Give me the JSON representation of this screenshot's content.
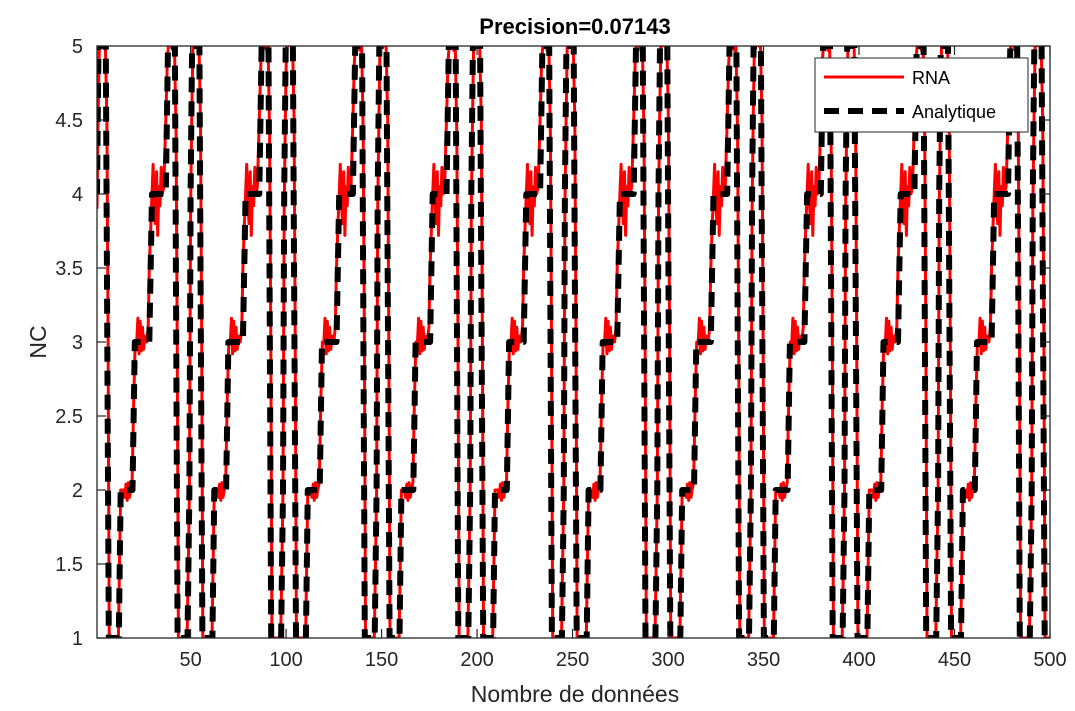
{
  "chart_data": {
    "type": "line",
    "title": "Precision=0.07143",
    "xlabel": "Nombre de données",
    "ylabel": "NC",
    "xlim": [
      1,
      500
    ],
    "ylim": [
      1,
      5
    ],
    "xticks": [
      50,
      100,
      150,
      200,
      250,
      300,
      350,
      400,
      450,
      500
    ],
    "xtick_labels": [
      "50",
      "100",
      "150",
      "200",
      "250",
      "300",
      "350",
      "400",
      "450",
      "500"
    ],
    "yticks": [
      1,
      1.5,
      2,
      2.5,
      3,
      3.5,
      4,
      4.5,
      5
    ],
    "ytick_labels": [
      "1",
      "1.5",
      "2",
      "2.5",
      "3",
      "3.5",
      "4",
      "4.5",
      "5"
    ],
    "grid": false,
    "legend_position": "top-right",
    "period": 49,
    "series": [
      {
        "name": "RNA",
        "color": "#ff0000",
        "style": "solid",
        "cycle": [
          [
            0,
            3.9
          ],
          [
            0.6,
            4.5
          ],
          [
            1.2,
            5.0
          ],
          [
            2.0,
            5.0
          ],
          [
            2.8,
            5.04
          ],
          [
            3.6,
            5.0
          ],
          [
            4.4,
            5.0
          ],
          [
            5.2,
            4.5
          ],
          [
            5.8,
            3.0
          ],
          [
            6.4,
            1.0
          ],
          [
            11.2,
            1.0
          ],
          [
            11.8,
            1.5
          ],
          [
            12.4,
            2.0
          ],
          [
            14.0,
            2.0
          ],
          [
            14.6,
            1.95
          ],
          [
            15.2,
            2.04
          ],
          [
            15.8,
            1.93
          ],
          [
            16.4,
            2.05
          ],
          [
            17.0,
            1.95
          ],
          [
            17.6,
            2.0
          ],
          [
            18.4,
            2.05
          ],
          [
            19.2,
            2.6
          ],
          [
            20.0,
            3.0
          ],
          [
            20.8,
            3.0
          ],
          [
            21.4,
            3.16
          ],
          [
            22.0,
            2.92
          ],
          [
            22.6,
            3.14
          ],
          [
            23.2,
            2.94
          ],
          [
            23.8,
            3.1
          ],
          [
            24.4,
            2.95
          ],
          [
            25.0,
            3.04
          ],
          [
            26.0,
            3.0
          ],
          [
            26.8,
            3.1
          ],
          [
            27.4,
            3.5
          ],
          [
            28.2,
            3.8
          ],
          [
            28.8,
            4.0
          ],
          [
            29.4,
            4.2
          ],
          [
            30.0,
            3.95
          ],
          [
            30.6,
            3.8
          ],
          [
            31.2,
            4.15
          ],
          [
            31.8,
            3.72
          ],
          [
            32.4,
            4.05
          ],
          [
            33.0,
            3.92
          ],
          [
            33.6,
            4.18
          ],
          [
            34.2,
            4.0
          ],
          [
            35.0,
            4.05
          ],
          [
            36.0,
            4.5
          ],
          [
            36.8,
            4.9
          ],
          [
            37.4,
            5.0
          ],
          [
            38.2,
            5.04
          ],
          [
            39.0,
            5.0
          ],
          [
            39.8,
            4.97
          ],
          [
            40.6,
            5.0
          ],
          [
            41.4,
            4.4
          ],
          [
            42.0,
            3.0
          ],
          [
            42.6,
            1.0
          ],
          [
            47.2,
            1.0
          ],
          [
            47.8,
            1.5
          ],
          [
            48.4,
            2.0
          ],
          [
            49.0,
            3.9
          ]
        ]
      },
      {
        "name": "Analytique",
        "color": "#000000",
        "style": "dashed",
        "cycle": [
          [
            0,
            4.0
          ],
          [
            0.8,
            5.0
          ],
          [
            4.6,
            5.0
          ],
          [
            6.2,
            1.0
          ],
          [
            11.4,
            1.0
          ],
          [
            12.4,
            2.0
          ],
          [
            18.6,
            2.0
          ],
          [
            19.8,
            3.0
          ],
          [
            27.4,
            3.0
          ],
          [
            28.8,
            4.0
          ],
          [
            36.0,
            4.0
          ],
          [
            37.2,
            5.0
          ],
          [
            40.8,
            5.0
          ],
          [
            42.2,
            1.0
          ],
          [
            47.4,
            1.0
          ],
          [
            48.4,
            2.0
          ],
          [
            49.0,
            4.0
          ]
        ]
      }
    ]
  }
}
